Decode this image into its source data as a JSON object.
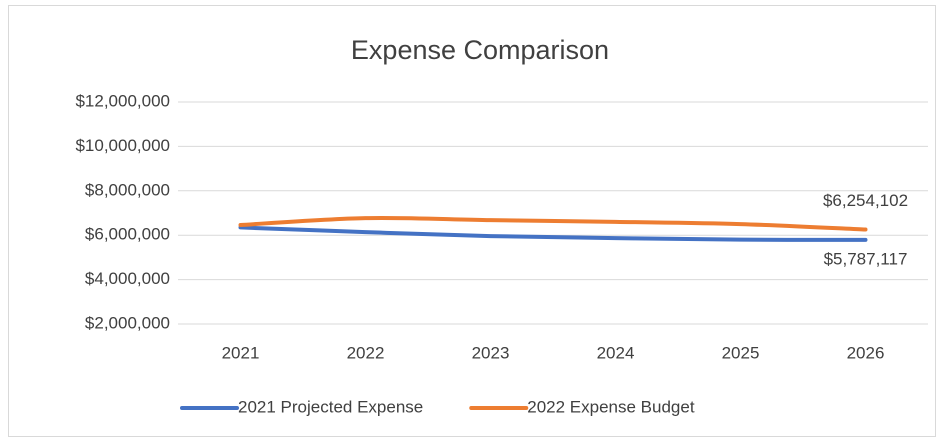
{
  "chart_data": {
    "type": "line",
    "title": "Expense Comparison",
    "categories": [
      "2021",
      "2022",
      "2023",
      "2024",
      "2025",
      "2026"
    ],
    "series": [
      {
        "name": "2021 Projected Expense",
        "color": "#4472c4",
        "values": [
          6350000,
          6140000,
          5960000,
          5870000,
          5800000,
          5787117
        ],
        "value_labels": [
          null,
          null,
          null,
          null,
          null,
          "$5,787,117"
        ]
      },
      {
        "name": "2022 Expense Budget",
        "color": "#ed7d31",
        "values": [
          6460000,
          6770000,
          6680000,
          6600000,
          6500000,
          6254102
        ],
        "value_labels": [
          null,
          null,
          null,
          null,
          null,
          "$6,254,102"
        ]
      }
    ],
    "ylim": [
      2000000,
      12000000
    ],
    "yticks": [
      {
        "value": 2000000,
        "label": "$2,000,000"
      },
      {
        "value": 4000000,
        "label": "$4,000,000"
      },
      {
        "value": 6000000,
        "label": "$6,000,000"
      },
      {
        "value": 8000000,
        "label": "$8,000,000"
      },
      {
        "value": 10000000,
        "label": "$10,000,000"
      },
      {
        "value": 12000000,
        "label": "$12,000,000"
      }
    ],
    "grid": true,
    "legend": "bottom",
    "smooth": true
  }
}
